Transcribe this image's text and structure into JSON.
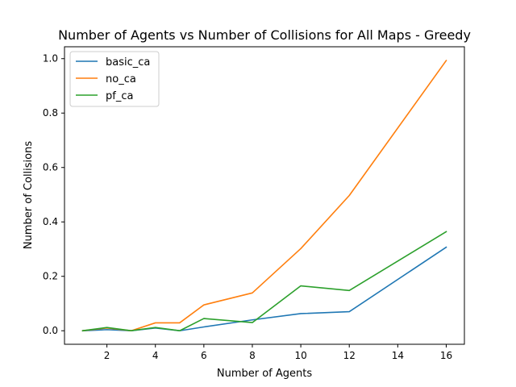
{
  "chart_data": {
    "type": "line",
    "title": "Number of Agents vs Number of Collisions for All Maps - Greedy",
    "xlabel": "Number of Agents",
    "ylabel": "Number of Collisions",
    "x": [
      1,
      2,
      3,
      4,
      5,
      6,
      8,
      10,
      12,
      16
    ],
    "xlim": [
      0.25,
      16.75
    ],
    "ylim": [
      -0.0497,
      1.0437
    ],
    "xticks": [
      2,
      4,
      6,
      8,
      10,
      12,
      14,
      16
    ],
    "yticks": [
      0.0,
      0.2,
      0.4,
      0.6,
      0.8,
      1.0
    ],
    "xtick_labels": [
      "2",
      "4",
      "6",
      "8",
      "10",
      "12",
      "14",
      "16"
    ],
    "ytick_labels": [
      "0.0",
      "0.2",
      "0.4",
      "0.6",
      "0.8",
      "1.0"
    ],
    "grid": false,
    "legend_position": "top-left",
    "series": [
      {
        "name": "basic_ca",
        "color": "#1f77b4",
        "values": [
          0.0,
          0.004,
          0.0,
          0.01,
          0.0,
          0.014,
          0.04,
          0.063,
          0.07,
          0.307
        ]
      },
      {
        "name": "no_ca",
        "color": "#ff7f0e",
        "values": [
          0.0,
          0.01,
          0.0,
          0.029,
          0.029,
          0.095,
          0.139,
          0.302,
          0.497,
          0.993
        ]
      },
      {
        "name": "pf_ca",
        "color": "#2ca02c",
        "values": [
          0.0,
          0.012,
          0.0,
          0.012,
          0.0,
          0.045,
          0.03,
          0.165,
          0.148,
          0.364
        ]
      }
    ]
  }
}
